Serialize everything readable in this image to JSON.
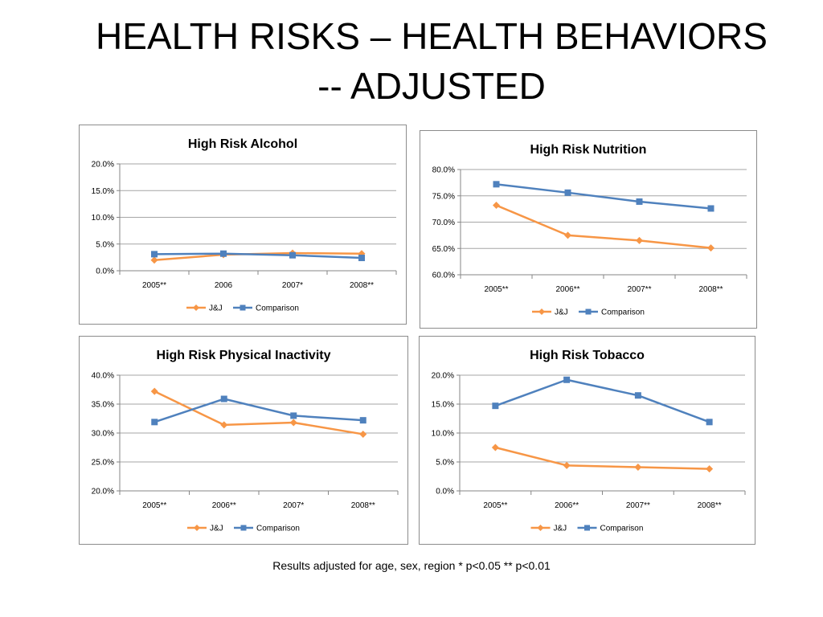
{
  "slide": {
    "title_line1": "HEALTH RISKS – HEALTH BEHAVIORS",
    "title_line2": "-- ADJUSTED",
    "footnote": "Results adjusted for age, sex, region * p<0.05 ** p<0.01"
  },
  "colors": {
    "jj": "#f79646",
    "comparison": "#4f81bd",
    "grid": "#a6a6a6",
    "axis": "#868686"
  },
  "chart_data": [
    {
      "type": "line",
      "title": "High Risk Alcohol",
      "categories": [
        "2005**",
        "2006",
        "2007*",
        "2008**"
      ],
      "ylim": [
        0,
        20
      ],
      "yticks": [
        "0.0%",
        "5.0%",
        "10.0%",
        "15.0%",
        "20.0%"
      ],
      "grid": true,
      "legend": "bottom",
      "series": [
        {
          "name": "J&J",
          "marker": "diamond",
          "values": [
            2.0,
            3.0,
            3.3,
            3.2
          ]
        },
        {
          "name": "Comparison",
          "marker": "square",
          "values": [
            3.1,
            3.2,
            2.9,
            2.4
          ]
        }
      ]
    },
    {
      "type": "line",
      "title": "High Risk Nutrition",
      "categories": [
        "2005**",
        "2006**",
        "2007**",
        "2008**"
      ],
      "ylim": [
        60,
        80
      ],
      "yticks": [
        "60.0%",
        "65.0%",
        "70.0%",
        "75.0%",
        "80.0%"
      ],
      "grid": true,
      "legend": "bottom",
      "series": [
        {
          "name": "J&J",
          "marker": "diamond",
          "values": [
            73.2,
            67.5,
            66.5,
            65.1
          ]
        },
        {
          "name": "Comparison",
          "marker": "square",
          "values": [
            77.2,
            75.6,
            73.9,
            72.6
          ]
        }
      ]
    },
    {
      "type": "line",
      "title": "High Risk Physical Inactivity",
      "categories": [
        "2005**",
        "2006**",
        "2007*",
        "2008**"
      ],
      "ylim": [
        20,
        40
      ],
      "yticks": [
        "20.0%",
        "25.0%",
        "30.0%",
        "35.0%",
        "40.0%"
      ],
      "grid": true,
      "legend": "bottom",
      "series": [
        {
          "name": "J&J",
          "marker": "diamond",
          "values": [
            37.2,
            31.4,
            31.8,
            29.8
          ]
        },
        {
          "name": "Comparison",
          "marker": "square",
          "values": [
            31.9,
            35.9,
            33.0,
            32.2
          ]
        }
      ]
    },
    {
      "type": "line",
      "title": "High Risk Tobacco",
      "categories": [
        "2005**",
        "2006**",
        "2007**",
        "2008**"
      ],
      "ylim": [
        0,
        20
      ],
      "yticks": [
        "0.0%",
        "5.0%",
        "10.0%",
        "15.0%",
        "20.0%"
      ],
      "grid": true,
      "legend": "bottom",
      "series": [
        {
          "name": "J&J",
          "marker": "diamond",
          "values": [
            7.5,
            4.4,
            4.1,
            3.8
          ]
        },
        {
          "name": "Comparison",
          "marker": "square",
          "values": [
            14.7,
            19.2,
            16.5,
            11.9
          ]
        }
      ]
    }
  ]
}
